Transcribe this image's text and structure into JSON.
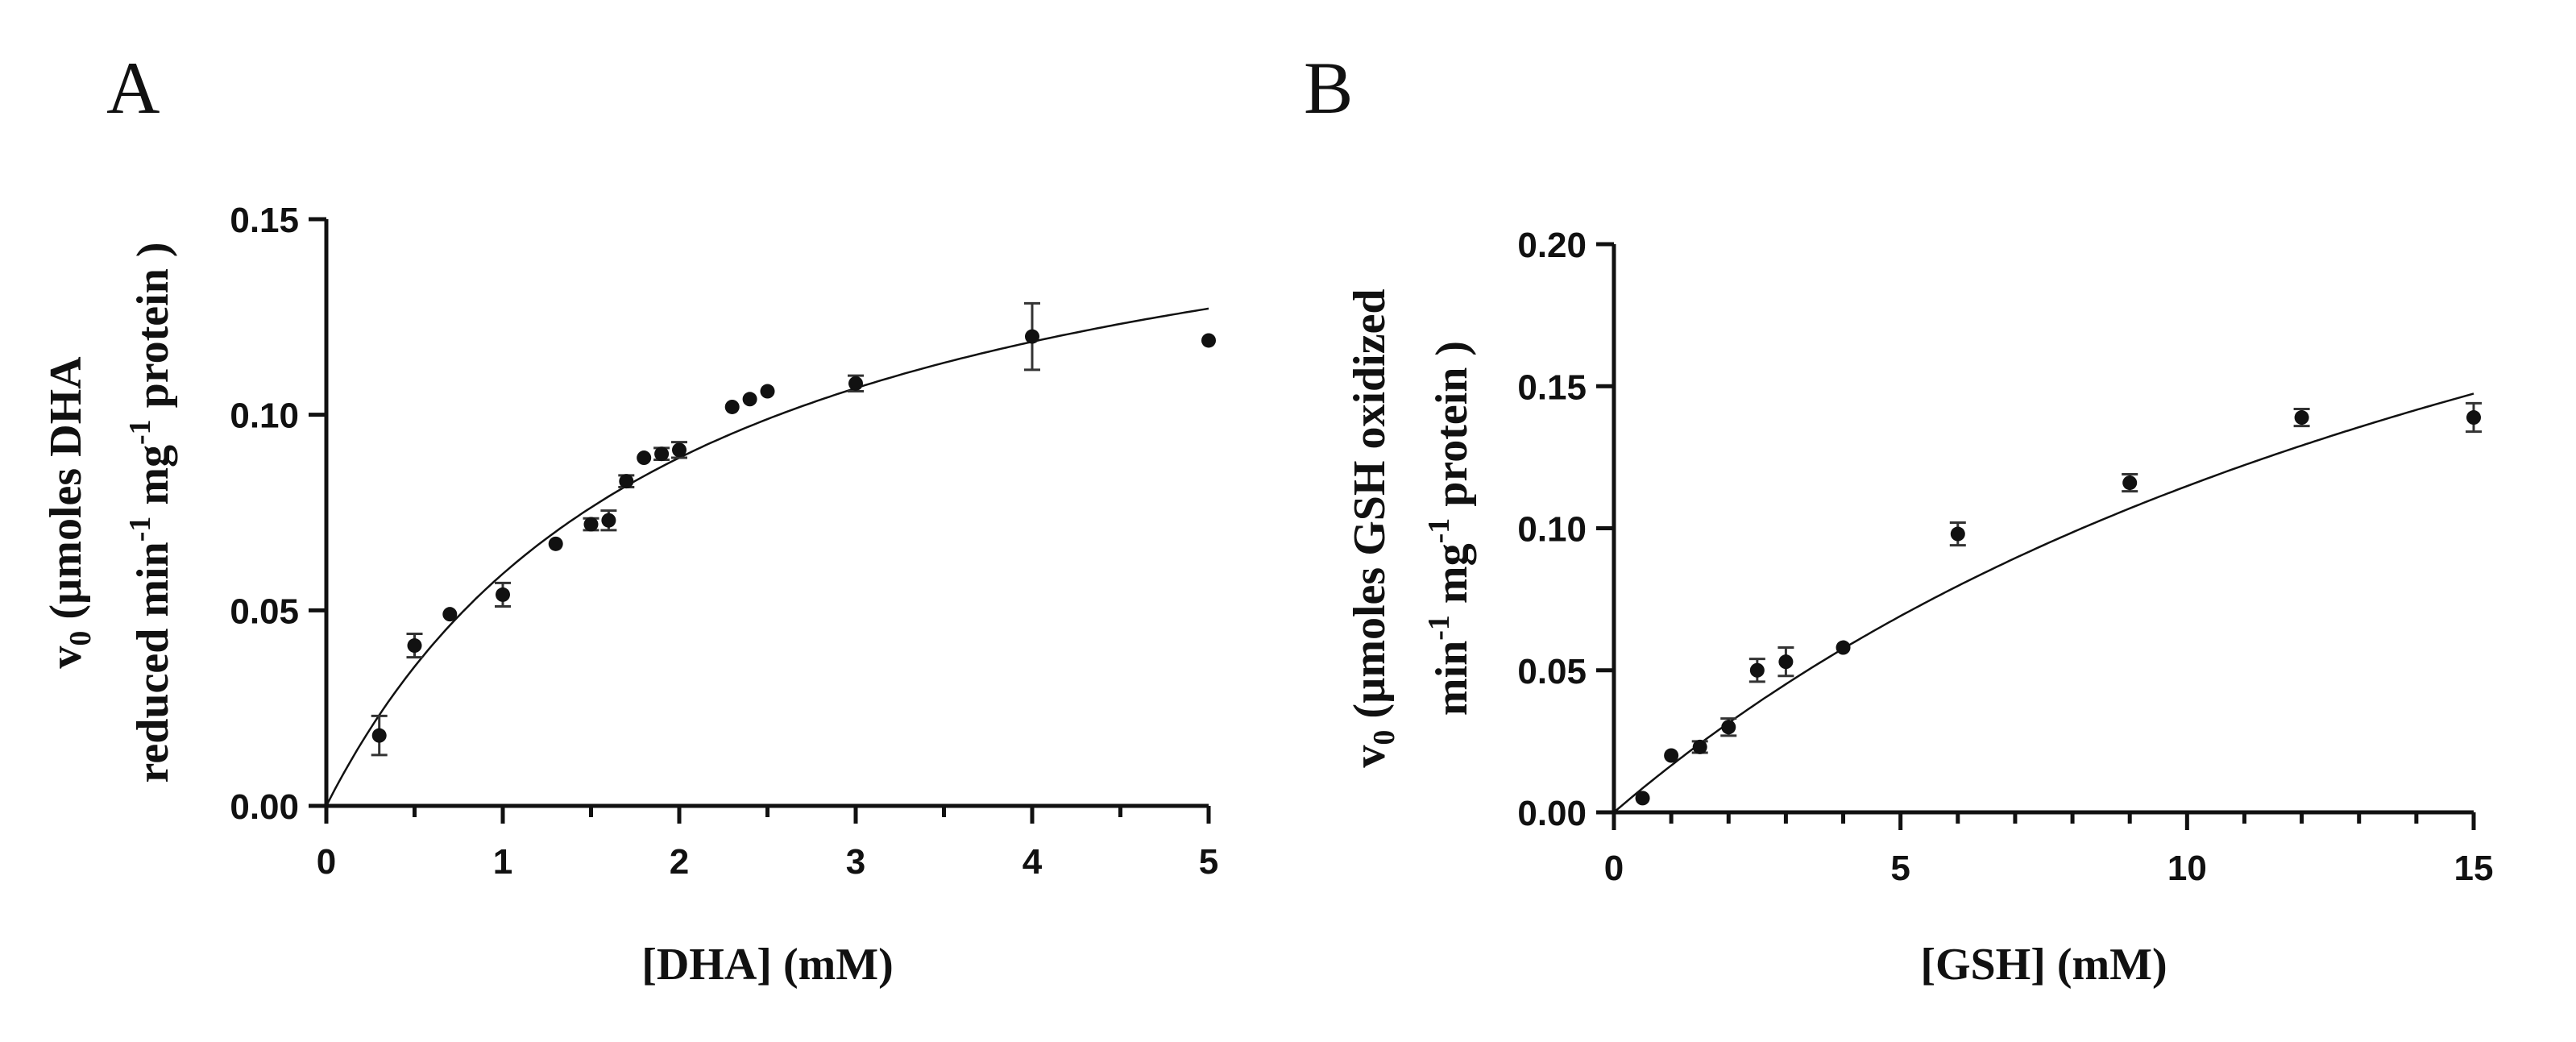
{
  "chart_data": [
    {
      "type": "scatter",
      "panel_label": "A",
      "xlabel": "[DHA] (mM)",
      "ylabel_parts": {
        "line1_v": "v",
        "line1_sub": "0",
        "line1_rest": " (µmoles DHA",
        "line2_a": "reduced min",
        "line2_sup1": "-1",
        "line2_b": " mg",
        "line2_sup2": "-1",
        "line2_c": " protein )"
      },
      "xlim": [
        0,
        5
      ],
      "ylim": [
        0,
        0.15
      ],
      "xticks": [
        0,
        1,
        2,
        3,
        4,
        5
      ],
      "xtick_labels": [
        "0",
        "1",
        "2",
        "3",
        "4",
        "5"
      ],
      "xminor": [
        0.5,
        1.5,
        2.5,
        3.5,
        4.5
      ],
      "yticks": [
        0,
        0.05,
        0.1,
        0.15
      ],
      "ytick_labels": [
        "0.00",
        "0.05",
        "0.10",
        "0.15"
      ],
      "fit": {
        "model": "michaelis-menten",
        "Vmax": 0.178,
        "Km": 2.0
      },
      "series": [
        {
          "name": "DHA",
          "x": [
            0.3,
            0.5,
            0.7,
            1.0,
            1.3,
            1.5,
            1.6,
            1.7,
            1.8,
            1.9,
            2.0,
            2.3,
            2.4,
            2.5,
            3.0,
            4.0,
            5.0
          ],
          "y": [
            0.018,
            0.041,
            0.049,
            0.054,
            0.067,
            0.072,
            0.073,
            0.083,
            0.089,
            0.09,
            0.091,
            0.102,
            0.104,
            0.106,
            0.108,
            0.12,
            0.119
          ],
          "err": [
            0.005,
            0.003,
            0.0,
            0.003,
            0.0,
            0.0015,
            0.0025,
            0.0015,
            0.0,
            0.0015,
            0.002,
            0.0,
            0.0,
            0.0,
            0.002,
            0.0085,
            0.0
          ]
        }
      ]
    },
    {
      "type": "scatter",
      "panel_label": "B",
      "xlabel": "[GSH] (mM)",
      "ylabel_parts": {
        "line1_v": "v",
        "line1_sub": "0",
        "line1_rest": " (µmoles GSH oxidized",
        "line2_a": "min",
        "line2_sup1": "-1",
        "line2_b": " mg",
        "line2_sup2": "-1",
        "line2_c": " protein )"
      },
      "xlim": [
        0,
        15
      ],
      "ylim": [
        0,
        0.2
      ],
      "xticks": [
        0,
        5,
        10,
        15
      ],
      "xtick_labels": [
        "0",
        "5",
        "10",
        "15"
      ],
      "xminor": [
        1,
        2,
        3,
        4,
        6,
        7,
        8,
        9,
        11,
        12,
        13,
        14
      ],
      "yticks": [
        0,
        0.05,
        0.1,
        0.15,
        0.2
      ],
      "ytick_labels": [
        "0.00",
        "0.05",
        "0.10",
        "0.15",
        "0.20"
      ],
      "fit": {
        "model": "michaelis-menten",
        "Vmax": 0.34,
        "Km": 19.6
      },
      "series": [
        {
          "name": "GSH",
          "x": [
            0.5,
            1.0,
            1.5,
            2.0,
            2.5,
            3.0,
            4.0,
            6.0,
            9.0,
            12.0,
            15.0
          ],
          "y": [
            0.005,
            0.02,
            0.023,
            0.03,
            0.05,
            0.053,
            0.058,
            0.098,
            0.116,
            0.139,
            0.139
          ],
          "err": [
            0.0,
            0.0,
            0.002,
            0.003,
            0.004,
            0.005,
            0.0,
            0.004,
            0.003,
            0.003,
            0.005
          ]
        }
      ]
    }
  ]
}
